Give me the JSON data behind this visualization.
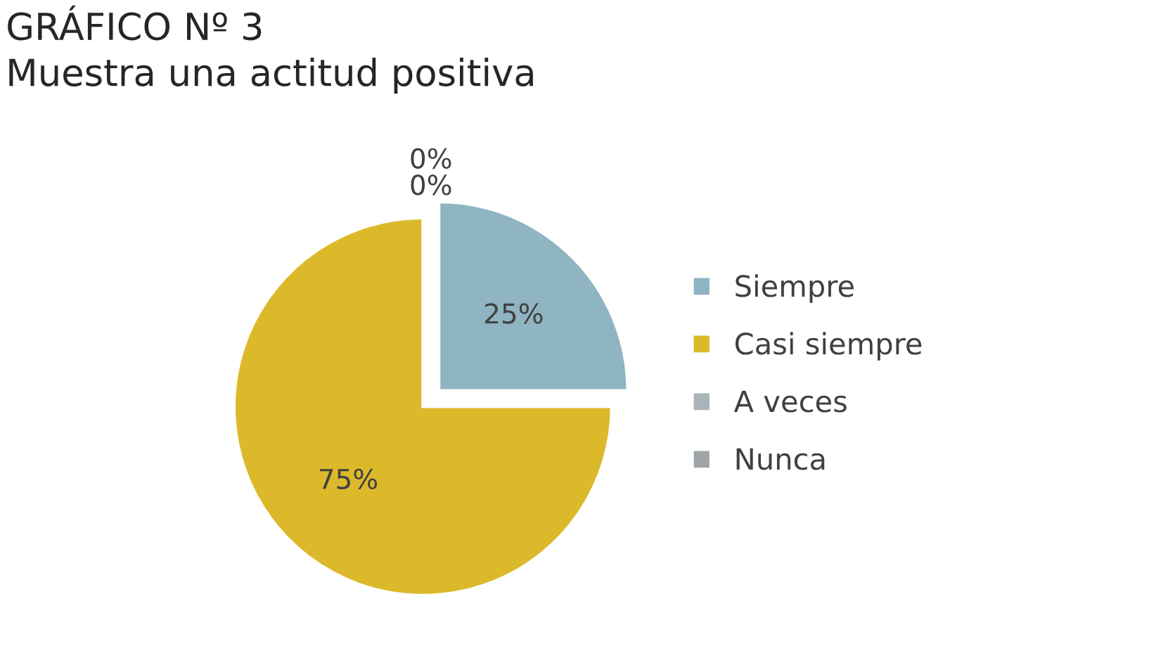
{
  "chart_data": {
    "type": "pie",
    "title": "GRÁFICO Nº 3",
    "subtitle": "Muestra una actitud positiva",
    "categories": [
      "Siempre",
      "Casi siempre",
      "A veces",
      "Nunca"
    ],
    "values": [
      25,
      75,
      0,
      0
    ],
    "value_labels": [
      "25%",
      "75%",
      "0%",
      "0%"
    ],
    "colors": [
      "#8fb4c2",
      "#dcb92a",
      "#a9b3b8",
      "#9ea4a8"
    ],
    "legend": "right"
  }
}
